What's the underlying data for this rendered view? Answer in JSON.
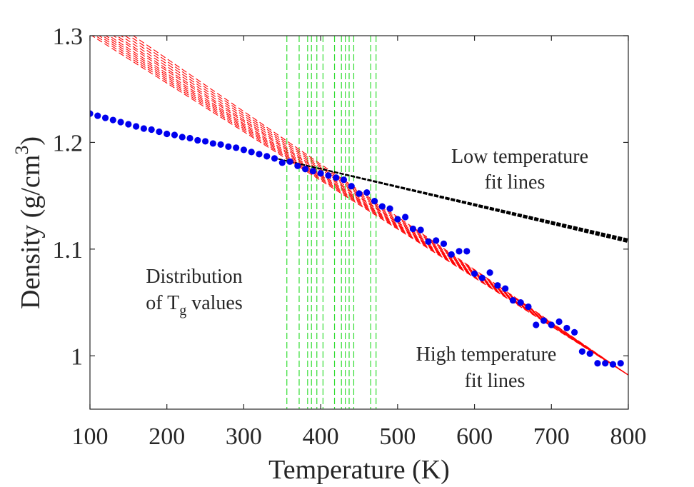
{
  "chart_data": {
    "type": "scatter",
    "xlabel": "Temperature (K)",
    "ylabel_parts": {
      "main": "Density (g/cm",
      "sup": "3",
      "close": ")"
    },
    "xlim": [
      100,
      800
    ],
    "ylim": [
      0.95,
      1.3
    ],
    "xticks": [
      100,
      200,
      300,
      400,
      500,
      600,
      700,
      800
    ],
    "xtick_labels": [
      "100",
      "200",
      "300",
      "400",
      "500",
      "600",
      "700",
      "800"
    ],
    "yticks": [
      1.0,
      1.1,
      1.2,
      1.3
    ],
    "ytick_labels": [
      "1",
      "1.1",
      "1.2",
      "1.3"
    ],
    "grid": false,
    "colors": {
      "points": "#0000ee",
      "high_fit": "#ff0000",
      "low_fit": "#000000",
      "tg": "#33dd33",
      "axes": "#262626"
    },
    "series": [
      {
        "kind": "points",
        "x": [
          100,
          110,
          120,
          130,
          140,
          150,
          160,
          170,
          180,
          190,
          200,
          210,
          220,
          230,
          240,
          250,
          260,
          270,
          280,
          290,
          300,
          310,
          320,
          330,
          340,
          350,
          360,
          370,
          380,
          390,
          400,
          410,
          420,
          430,
          440,
          450,
          460,
          470,
          480,
          490,
          500,
          510,
          520,
          530,
          540,
          550,
          560,
          570,
          580,
          590,
          600,
          610,
          620,
          630,
          640,
          650,
          660,
          670,
          680,
          690,
          700,
          710,
          720,
          730,
          740,
          750,
          760,
          770,
          780,
          790
        ],
        "y": [
          1.227,
          1.225,
          1.223,
          1.221,
          1.219,
          1.217,
          1.215,
          1.213,
          1.212,
          1.21,
          1.208,
          1.207,
          1.205,
          1.204,
          1.202,
          1.201,
          1.199,
          1.198,
          1.196,
          1.195,
          1.193,
          1.191,
          1.189,
          1.187,
          1.185,
          1.181,
          1.182,
          1.178,
          1.175,
          1.173,
          1.171,
          1.169,
          1.167,
          1.165,
          1.159,
          1.152,
          1.153,
          1.145,
          1.14,
          1.138,
          1.128,
          1.13,
          1.119,
          1.118,
          1.107,
          1.108,
          1.105,
          1.095,
          1.098,
          1.098,
          1.077,
          1.073,
          1.078,
          1.066,
          1.063,
          1.052,
          1.05,
          1.046,
          1.029,
          1.033,
          1.029,
          1.032,
          1.026,
          1.022,
          1.004,
          1.002,
          0.993,
          0.993,
          0.992,
          0.993
        ]
      },
      {
        "kind": "high_fit_lines",
        "slopes": [
          -0.000456,
          -0.000459,
          -0.000462,
          -0.000465,
          -0.000468,
          -0.000471,
          -0.000475,
          -0.000478,
          -0.000482,
          -0.000486,
          -0.00049,
          -0.000494
        ],
        "intercept_at_800": 0.982
      },
      {
        "kind": "low_fit_lines",
        "slopes": [
          -0.000165,
          -0.000166,
          -0.000167,
          -0.000168,
          -0.000169,
          -0.00017,
          -0.000171,
          -0.000172
        ],
        "x_range": [
          345,
          800
        ],
        "value_at_345": 1.1845
      },
      {
        "kind": "tg_lines",
        "x": [
          356,
          372,
          383,
          388,
          395,
          403,
          418,
          427,
          432,
          437,
          443,
          465,
          472
        ]
      }
    ],
    "annotations": [
      {
        "id": "low",
        "lines": [
          "Low temperature",
          "fit lines"
        ]
      },
      {
        "id": "high",
        "lines": [
          "High temperature",
          "fit lines"
        ]
      },
      {
        "id": "dist",
        "line1": "Distribution",
        "line2_pre": "of T",
        "line2_sub": "g",
        "line2_post": " values"
      }
    ]
  }
}
